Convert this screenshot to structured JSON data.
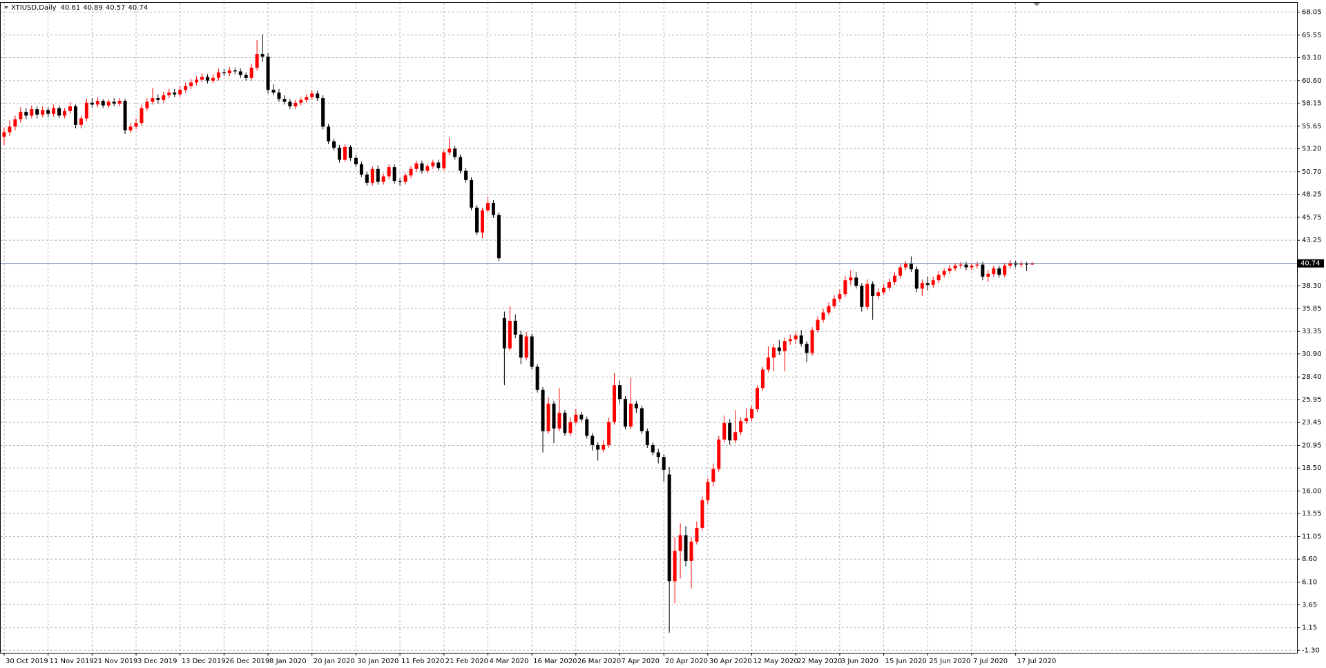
{
  "chart_data": {
    "type": "candlestick",
    "title": "XTIUSD,Daily",
    "up_color": "#ff0000",
    "down_color": "#000000",
    "grid": true,
    "ylim": [
      -1.58,
      69.06
    ],
    "yticks": [
      68.05,
      65.55,
      {
        "value": 63.1,
        "label": "63.10"
      },
      {
        "value": 60.6,
        "label": "60.60"
      },
      58.15,
      55.65,
      {
        "value": 53.2,
        "label": "53.20"
      },
      {
        "value": 50.7,
        "label": "50.70"
      },
      48.25,
      45.75,
      43.25,
      {
        "value": 38.3,
        "label": "38.30"
      },
      35.85,
      33.35,
      {
        "value": 30.9,
        "label": "30.90"
      },
      {
        "value": 28.4,
        "label": "28.40"
      },
      25.95,
      23.45,
      20.95,
      {
        "value": 18.5,
        "label": "18.50"
      },
      {
        "value": 16,
        "label": "16.00"
      },
      13.55,
      11.05,
      {
        "value": 8.6,
        "label": "8.60"
      },
      {
        "value": 6.1,
        "label": "6.10"
      },
      3.65,
      1.15,
      {
        "value": -1.3,
        "label": "-1.30"
      }
    ],
    "categories": [
      "30 Oct 2019",
      null,
      null,
      null,
      null,
      null,
      null,
      null,
      "11 Nov 2019",
      null,
      null,
      null,
      null,
      null,
      null,
      null,
      "21 Nov 2019",
      null,
      null,
      null,
      null,
      null,
      null,
      null,
      "3 Dec 2019",
      null,
      null,
      null,
      null,
      null,
      null,
      null,
      "13 Dec 2019",
      null,
      null,
      null,
      null,
      null,
      null,
      null,
      "26 Dec 2019",
      null,
      null,
      null,
      null,
      null,
      null,
      null,
      "8 Jan 2020",
      null,
      null,
      null,
      null,
      null,
      null,
      null,
      "20 Jan 2020",
      null,
      null,
      null,
      null,
      null,
      null,
      null,
      "30 Jan 2020",
      null,
      null,
      null,
      null,
      null,
      null,
      null,
      "11 Feb 2020",
      null,
      null,
      null,
      null,
      null,
      null,
      null,
      "21 Feb 2020",
      null,
      null,
      null,
      null,
      null,
      null,
      null,
      "4 Mar 2020",
      null,
      null,
      null,
      null,
      null,
      null,
      null,
      "16 Mar 2020",
      null,
      null,
      null,
      null,
      null,
      null,
      null,
      "26 Mar 2020",
      null,
      null,
      null,
      null,
      null,
      null,
      null,
      "7 Apr 2020",
      null,
      null,
      null,
      null,
      null,
      null,
      null,
      "20 Apr 2020",
      null,
      null,
      null,
      null,
      null,
      null,
      null,
      "30 Apr 2020",
      null,
      null,
      null,
      null,
      null,
      null,
      null,
      "12 May 2020",
      null,
      null,
      null,
      null,
      null,
      null,
      null,
      "22 May 2020",
      null,
      null,
      null,
      null,
      null,
      null,
      null,
      "3 Jun 2020",
      null,
      null,
      null,
      null,
      null,
      null,
      null,
      "15 Jun 2020",
      null,
      null,
      null,
      null,
      null,
      null,
      null,
      "25 Jun 2020",
      null,
      null,
      null,
      null,
      null,
      null,
      null,
      "7 Jul 2020",
      null,
      null,
      null,
      null,
      null,
      null,
      null,
      "17 Jul 2020",
      null,
      null,
      null
    ],
    "candles": [
      [
        54.5,
        55.5,
        53.6,
        55.0
      ],
      [
        55.0,
        56.3,
        54.6,
        55.6
      ],
      [
        55.6,
        56.8,
        55.2,
        56.4
      ],
      [
        56.4,
        57.7,
        56.0,
        57.2
      ],
      [
        57.2,
        57.6,
        56.4,
        56.8
      ],
      [
        56.8,
        57.9,
        56.5,
        57.5
      ],
      [
        57.5,
        57.8,
        56.5,
        56.9
      ],
      [
        56.9,
        57.8,
        56.6,
        57.4
      ],
      [
        57.4,
        57.7,
        56.6,
        57.0
      ],
      [
        57.0,
        58.0,
        56.7,
        57.6
      ],
      [
        57.6,
        57.9,
        56.5,
        56.8
      ],
      [
        56.8,
        57.6,
        56.5,
        57.3
      ],
      [
        57.3,
        58.3,
        57.0,
        57.8
      ],
      [
        57.8,
        58.0,
        55.4,
        55.8
      ],
      [
        55.8,
        56.8,
        55.4,
        56.5
      ],
      [
        56.5,
        58.6,
        56.2,
        58.2
      ],
      [
        58.2,
        58.7,
        57.7,
        58.0
      ],
      [
        58.0,
        58.8,
        57.7,
        58.4
      ],
      [
        58.4,
        58.6,
        57.6,
        57.9
      ],
      [
        57.9,
        58.6,
        57.6,
        58.3
      ],
      [
        58.3,
        58.7,
        57.8,
        58.1
      ],
      [
        58.1,
        58.7,
        57.8,
        58.4
      ],
      [
        58.4,
        58.6,
        54.8,
        55.2
      ],
      [
        55.2,
        56.0,
        54.9,
        55.6
      ],
      [
        55.6,
        56.5,
        55.3,
        56.0
      ],
      [
        56.0,
        58.0,
        55.7,
        57.6
      ],
      [
        57.6,
        58.7,
        57.3,
        58.3
      ],
      [
        58.3,
        59.8,
        58.0,
        58.7
      ],
      [
        58.7,
        59.1,
        58.1,
        58.5
      ],
      [
        58.5,
        59.4,
        58.2,
        59.0
      ],
      [
        59.0,
        59.7,
        58.7,
        59.3
      ],
      [
        59.3,
        59.7,
        58.8,
        59.1
      ],
      [
        59.1,
        60.0,
        58.8,
        59.6
      ],
      [
        59.6,
        60.4,
        59.3,
        60.0
      ],
      [
        60.0,
        60.8,
        59.7,
        60.4
      ],
      [
        60.4,
        61.1,
        60.1,
        60.7
      ],
      [
        60.7,
        61.4,
        60.4,
        61.0
      ],
      [
        61.0,
        61.3,
        60.3,
        60.6
      ],
      [
        60.6,
        61.3,
        60.3,
        60.9
      ],
      [
        60.9,
        61.9,
        60.6,
        61.5
      ],
      [
        61.5,
        61.9,
        61.1,
        61.4
      ],
      [
        61.4,
        62.1,
        61.1,
        61.7
      ],
      [
        61.7,
        62.0,
        61.3,
        61.6
      ],
      [
        61.6,
        61.9,
        60.9,
        61.2
      ],
      [
        61.2,
        61.5,
        60.6,
        60.9
      ],
      [
        60.9,
        62.4,
        60.6,
        62.0
      ],
      [
        62.0,
        65.0,
        61.7,
        63.5
      ],
      [
        63.5,
        65.6,
        62.6,
        63.2
      ],
      [
        63.2,
        63.6,
        59.2,
        59.6
      ],
      [
        59.6,
        60.2,
        59.0,
        59.3
      ],
      [
        59.3,
        59.7,
        58.3,
        58.6
      ],
      [
        58.6,
        59.0,
        58.0,
        58.3
      ],
      [
        58.3,
        58.6,
        57.5,
        57.8
      ],
      [
        57.8,
        58.5,
        57.5,
        58.2
      ],
      [
        58.2,
        58.8,
        57.9,
        58.5
      ],
      [
        58.5,
        59.1,
        58.2,
        58.8
      ],
      [
        58.8,
        59.6,
        58.5,
        59.2
      ],
      [
        59.2,
        59.5,
        58.4,
        58.7
      ],
      [
        58.7,
        59.0,
        55.3,
        55.6
      ],
      [
        55.6,
        55.9,
        53.7,
        54.0
      ],
      [
        54.0,
        54.3,
        53.0,
        53.3
      ],
      [
        53.3,
        53.6,
        51.7,
        52.0
      ],
      [
        52.0,
        53.7,
        51.8,
        53.4
      ],
      [
        53.4,
        53.6,
        51.9,
        52.2
      ],
      [
        52.2,
        52.5,
        51.2,
        51.5
      ],
      [
        51.5,
        51.8,
        50.1,
        50.4
      ],
      [
        50.4,
        50.7,
        49.2,
        49.5
      ],
      [
        49.5,
        51.3,
        49.2,
        51.0
      ],
      [
        51.0,
        51.4,
        49.3,
        49.6
      ],
      [
        49.6,
        50.5,
        49.3,
        50.2
      ],
      [
        50.2,
        51.5,
        49.9,
        51.2
      ],
      [
        51.2,
        51.5,
        49.4,
        49.7
      ],
      [
        49.7,
        50.0,
        49.2,
        49.6
      ],
      [
        49.6,
        50.6,
        49.3,
        50.3
      ],
      [
        50.3,
        51.3,
        50.0,
        51.0
      ],
      [
        51.0,
        51.9,
        50.7,
        51.6
      ],
      [
        51.6,
        51.9,
        50.5,
        50.8
      ],
      [
        50.8,
        51.6,
        50.5,
        51.3
      ],
      [
        51.3,
        52.0,
        51.0,
        51.7
      ],
      [
        51.7,
        52.0,
        50.8,
        51.1
      ],
      [
        51.1,
        53.1,
        50.8,
        52.8
      ],
      [
        52.8,
        54.4,
        52.5,
        53.2
      ],
      [
        53.2,
        53.5,
        52.0,
        52.3
      ],
      [
        52.3,
        52.6,
        50.5,
        50.8
      ],
      [
        50.8,
        51.1,
        49.5,
        49.8
      ],
      [
        49.8,
        50.1,
        46.5,
        46.8
      ],
      [
        46.8,
        47.1,
        43.8,
        44.1
      ],
      [
        44.1,
        46.8,
        43.5,
        46.5
      ],
      [
        46.5,
        48.0,
        46.2,
        47.3
      ],
      [
        47.3,
        47.6,
        45.7,
        46.0
      ],
      [
        46.0,
        46.3,
        41.0,
        41.3
      ],
      [
        34.8,
        35.5,
        27.5,
        31.5
      ],
      [
        31.5,
        36.1,
        31.2,
        34.5
      ],
      [
        34.5,
        35.2,
        32.6,
        33.0
      ],
      [
        33.0,
        33.4,
        29.8,
        30.5
      ],
      [
        30.5,
        33.3,
        30.2,
        32.8
      ],
      [
        32.8,
        33.1,
        29.2,
        29.5
      ],
      [
        29.5,
        29.8,
        26.7,
        27.0
      ],
      [
        27.0,
        27.3,
        20.2,
        22.5
      ],
      [
        22.5,
        26.2,
        22.2,
        25.5
      ],
      [
        25.5,
        25.8,
        21.2,
        22.8
      ],
      [
        22.8,
        27.2,
        22.5,
        24.5
      ],
      [
        24.5,
        24.8,
        22.0,
        22.3
      ],
      [
        22.3,
        24.0,
        22.0,
        23.5
      ],
      [
        23.5,
        24.9,
        23.2,
        24.3
      ],
      [
        24.3,
        24.6,
        23.5,
        23.8
      ],
      [
        23.8,
        24.1,
        21.7,
        22.0
      ],
      [
        22.0,
        22.3,
        20.4,
        21.0
      ],
      [
        21.0,
        21.3,
        19.3,
        20.5
      ],
      [
        20.5,
        21.5,
        20.2,
        21.0
      ],
      [
        21.0,
        24.0,
        20.7,
        23.5
      ],
      [
        23.5,
        28.8,
        23.2,
        27.5
      ],
      [
        27.5,
        28.0,
        25.5,
        26.0
      ],
      [
        26.0,
        26.3,
        22.7,
        23.0
      ],
      [
        23.0,
        28.3,
        22.7,
        25.5
      ],
      [
        25.5,
        25.8,
        24.5,
        25.0
      ],
      [
        25.0,
        25.3,
        22.2,
        22.5
      ],
      [
        22.5,
        22.8,
        20.7,
        21.0
      ],
      [
        21.0,
        21.3,
        19.9,
        20.2
      ],
      [
        20.2,
        20.6,
        19.0,
        19.7
      ],
      [
        19.7,
        20.0,
        17.0,
        18.3
      ],
      [
        17.8,
        18.6,
        0.6,
        6.2
      ],
      [
        6.2,
        11.0,
        3.8,
        9.5
      ],
      [
        9.5,
        12.5,
        6.5,
        11.2
      ],
      [
        11.2,
        12.2,
        7.8,
        8.4
      ],
      [
        8.4,
        11.0,
        5.4,
        10.5
      ],
      [
        10.5,
        12.7,
        10.2,
        12.0
      ],
      [
        12.0,
        15.4,
        11.7,
        15.0
      ],
      [
        15.0,
        17.4,
        14.6,
        17.0
      ],
      [
        17.0,
        19.0,
        16.5,
        18.4
      ],
      [
        18.4,
        22.0,
        18.1,
        21.6
      ],
      [
        21.6,
        24.2,
        21.3,
        23.4
      ],
      [
        23.4,
        23.8,
        21.0,
        21.5
      ],
      [
        21.5,
        24.8,
        21.2,
        22.4
      ],
      [
        22.4,
        24.0,
        22.1,
        23.6
      ],
      [
        23.6,
        25.0,
        23.3,
        23.9
      ],
      [
        23.9,
        25.3,
        23.6,
        24.9
      ],
      [
        24.9,
        27.5,
        24.6,
        27.2
      ],
      [
        27.2,
        29.5,
        26.9,
        29.2
      ],
      [
        29.2,
        31.7,
        28.9,
        30.5
      ],
      [
        30.5,
        32.0,
        29.0,
        31.6
      ],
      [
        31.6,
        32.4,
        30.8,
        31.2
      ],
      [
        31.2,
        32.7,
        29.0,
        32.3
      ],
      [
        32.3,
        33.0,
        31.9,
        32.5
      ],
      [
        32.5,
        33.3,
        32.0,
        32.9
      ],
      [
        32.9,
        33.5,
        31.7,
        32.0
      ],
      [
        32.0,
        32.3,
        30.0,
        31.0
      ],
      [
        31.0,
        33.8,
        30.7,
        33.5
      ],
      [
        33.5,
        35.0,
        33.2,
        34.6
      ],
      [
        34.6,
        35.8,
        34.3,
        35.4
      ],
      [
        35.4,
        36.5,
        35.1,
        36.1
      ],
      [
        36.1,
        37.3,
        35.8,
        36.9
      ],
      [
        36.9,
        37.9,
        36.6,
        37.4
      ],
      [
        37.4,
        39.4,
        37.1,
        38.9
      ],
      [
        38.9,
        40.0,
        38.4,
        39.2
      ],
      [
        39.2,
        39.8,
        38.0,
        38.3
      ],
      [
        38.3,
        38.6,
        35.5,
        36.0
      ],
      [
        36.0,
        39.0,
        35.7,
        38.5
      ],
      [
        38.5,
        38.8,
        34.6,
        37.2
      ],
      [
        37.2,
        38.0,
        36.9,
        37.6
      ],
      [
        37.6,
        38.5,
        37.3,
        38.1
      ],
      [
        38.1,
        39.1,
        37.8,
        38.7
      ],
      [
        38.7,
        39.8,
        38.4,
        39.4
      ],
      [
        39.4,
        40.6,
        39.1,
        40.3
      ],
      [
        40.3,
        41.0,
        40.0,
        40.7
      ],
      [
        40.7,
        41.5,
        39.8,
        40.1
      ],
      [
        40.1,
        40.4,
        37.6,
        38.0
      ],
      [
        38.0,
        39.0,
        37.2,
        38.6
      ],
      [
        38.6,
        39.3,
        37.8,
        38.4
      ],
      [
        38.4,
        39.3,
        38.1,
        38.9
      ],
      [
        38.9,
        39.9,
        38.6,
        39.5
      ],
      [
        39.5,
        40.2,
        39.2,
        39.9
      ],
      [
        39.9,
        40.6,
        39.6,
        40.2
      ],
      [
        40.2,
        40.8,
        39.9,
        40.5
      ],
      [
        40.5,
        40.9,
        40.2,
        40.6
      ],
      [
        40.6,
        40.9,
        40.0,
        40.3
      ],
      [
        40.3,
        40.8,
        40.0,
        40.5
      ],
      [
        40.5,
        40.9,
        40.2,
        40.6
      ],
      [
        40.6,
        40.9,
        38.9,
        39.3
      ],
      [
        39.3,
        40.0,
        38.7,
        39.6
      ],
      [
        39.6,
        40.5,
        39.3,
        40.2
      ],
      [
        40.2,
        40.5,
        39.2,
        39.5
      ],
      [
        39.5,
        40.8,
        39.2,
        40.5
      ],
      [
        40.5,
        41.1,
        40.2,
        40.8
      ],
      [
        40.8,
        41.0,
        40.3,
        40.6
      ],
      [
        40.6,
        41.0,
        40.3,
        40.7
      ],
      [
        40.7,
        40.9,
        39.9,
        40.61
      ],
      [
        40.61,
        40.89,
        40.57,
        40.74
      ]
    ]
  }
}
